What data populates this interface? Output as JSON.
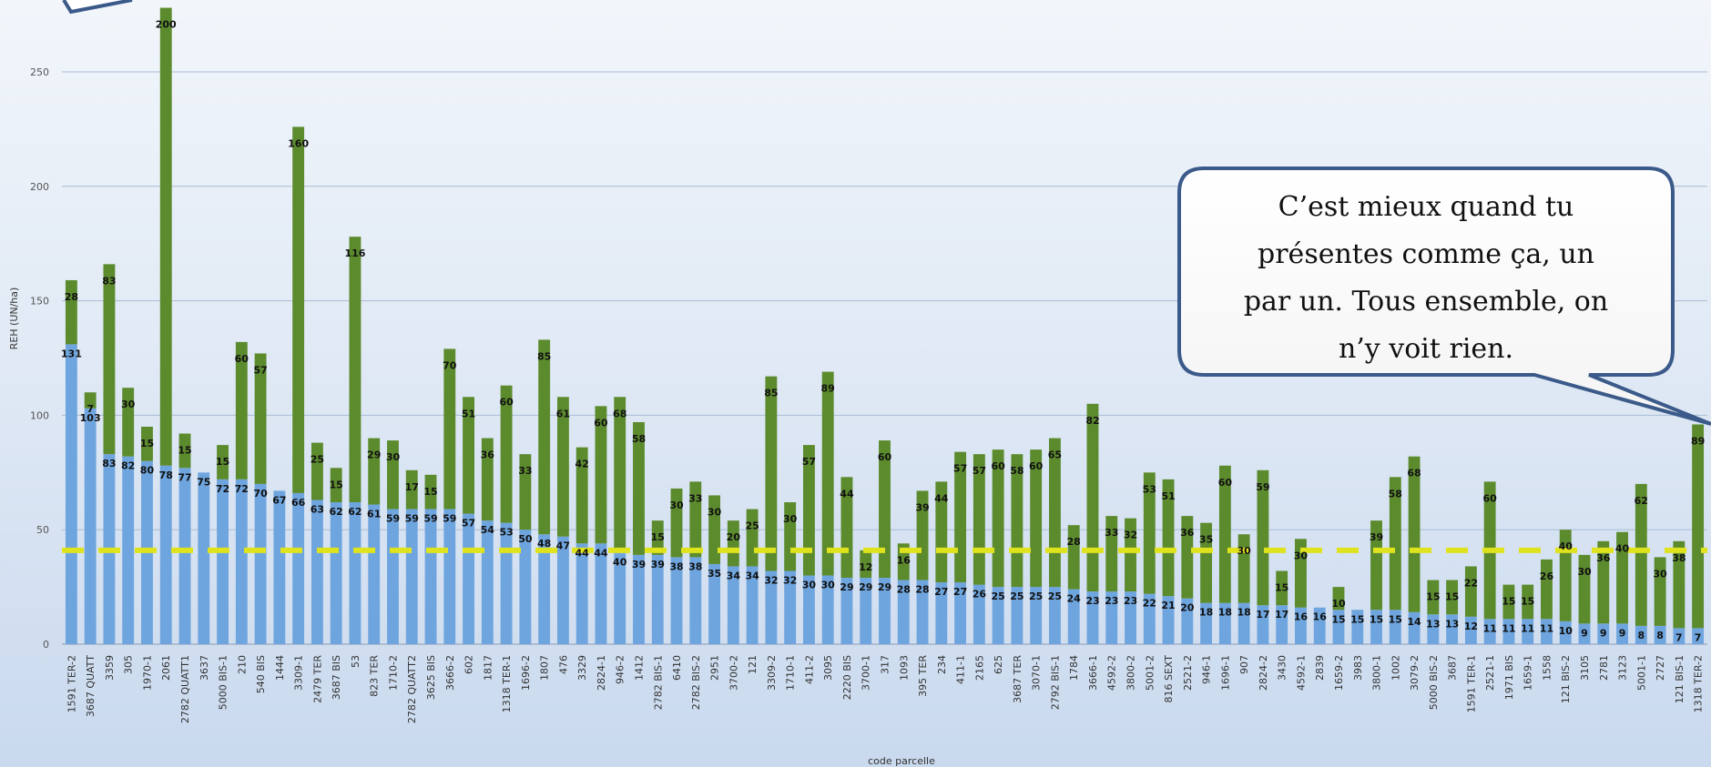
{
  "chart_data": {
    "type": "bar",
    "stacked": true,
    "xlabel": "code parcelle",
    "ylabel": "REH (UN/ha)",
    "ylim": [
      0,
      270
    ],
    "yticks": [
      0,
      50,
      100,
      150,
      200,
      250
    ],
    "grid": true,
    "threshold_value": 41,
    "colors": {
      "base": "#6fa5de",
      "top": "#5c8b2e",
      "threshold": "#dfe31e"
    },
    "categories": [
      "1591 TER-2",
      "3687 QUATT",
      "3359",
      "305",
      "1970-1",
      "2061",
      "2782 QUATT1",
      "3637",
      "5000 BIS-1",
      "210",
      "540 BIS",
      "1444",
      "3309-1",
      "2479 TER",
      "3687 BIS",
      "53",
      "823 TER",
      "1710-2",
      "2782 QUATT2",
      "3625 BIS",
      "3666-2",
      "602",
      "1817",
      "1318 TER-1",
      "1696-2",
      "1807",
      "476",
      "3329",
      "2824-1",
      "946-2",
      "1412",
      "2782 BIS-1",
      "6410",
      "2782 BIS-2",
      "2951",
      "3700-2",
      "121",
      "3309-2",
      "1710-1",
      "411-2",
      "3095",
      "2220 BIS",
      "3700-1",
      "317",
      "1093",
      "395 TER",
      "234",
      "411-1",
      "2165",
      "625",
      "3687 TER",
      "3070-1",
      "2792 BIS-1",
      "1784",
      "3666-1",
      "4592-2",
      "3800-2",
      "5001-2",
      "816 SEXT",
      "2521-2",
      "946-1",
      "1696-1",
      "907",
      "2824-2",
      "3430",
      "4592-1",
      "2839",
      "1659-2",
      "3983",
      "3800-1",
      "1002",
      "3079-2",
      "5000 BIS-2",
      "3687",
      "1591 TER-1",
      "2521-1",
      "1971 BIS",
      "1659-1",
      "1558",
      "121 BIS-2",
      "3105",
      "2781",
      "3123",
      "5001-1",
      "2727",
      "121 BIS-1",
      "1318 TER-2"
    ],
    "series": [
      {
        "values": [
          131,
          103,
          83,
          82,
          80,
          78,
          77,
          75,
          72,
          72,
          70,
          67,
          66,
          63,
          62,
          62,
          61,
          59,
          59,
          59,
          59,
          57,
          54,
          53,
          50,
          48,
          47,
          44,
          44,
          40,
          39,
          39,
          38,
          38,
          35,
          34,
          34,
          32,
          32,
          30,
          30,
          29,
          29,
          29,
          28,
          28,
          27,
          27,
          26,
          25,
          25,
          25,
          25,
          24,
          23,
          23,
          23,
          22,
          21,
          20,
          18,
          18,
          18,
          17,
          17,
          16,
          16,
          15,
          15,
          15,
          15,
          14,
          13,
          13,
          12,
          11,
          11,
          11,
          11,
          10,
          9,
          9,
          9,
          8,
          8,
          7,
          7
        ]
      },
      {
        "values": [
          28,
          7,
          83,
          30,
          15,
          200,
          15,
          null,
          15,
          60,
          57,
          null,
          160,
          25,
          15,
          116,
          29,
          30,
          17,
          15,
          70,
          51,
          36,
          60,
          33,
          85,
          61,
          42,
          60,
          68,
          58,
          15,
          30,
          33,
          30,
          20,
          25,
          85,
          30,
          57,
          89,
          44,
          12,
          60,
          16,
          39,
          44,
          57,
          57,
          60,
          58,
          60,
          65,
          28,
          82,
          33,
          32,
          53,
          51,
          36,
          35,
          60,
          30,
          59,
          15,
          30,
          null,
          10,
          null,
          39,
          58,
          68,
          15,
          15,
          22,
          60,
          15,
          15,
          26,
          40,
          30,
          36,
          40,
          62,
          30,
          38,
          89
        ]
      }
    ]
  },
  "bubble": {
    "lines": [
      "C’est mieux quand tu",
      "présentes comme ça, un",
      "par un. Tous ensemble, on",
      "n’y voit rien."
    ]
  }
}
